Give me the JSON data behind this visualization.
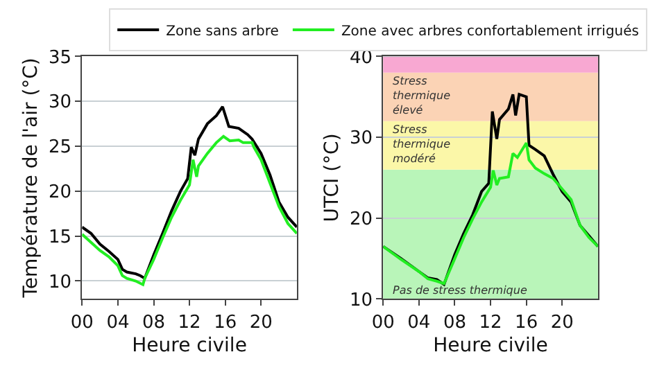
{
  "chart_data": [
    {
      "type": "line",
      "xlabel": "Heure civile",
      "ylabel": "Température de l'air (°C)",
      "legend": "top",
      "grid": "y",
      "line_style": "solid",
      "marker": "none",
      "xlim": [
        0,
        24
      ],
      "xticks": [
        {
          "value": 0,
          "label": "00"
        },
        {
          "value": 4,
          "label": "04"
        },
        {
          "value": 8,
          "label": "08"
        },
        12,
        16,
        20
      ],
      "ylim": [
        8,
        35
      ],
      "yticks": [
        10,
        15,
        20,
        25,
        30,
        35
      ],
      "series": [
        {
          "name": "Zone sans arbre",
          "color": "#000000",
          "x": [
            0,
            1,
            2,
            3,
            4,
            4.5,
            5,
            6,
            6.5,
            7,
            8,
            9,
            10,
            11,
            11.8,
            12.2,
            12.6,
            13,
            14,
            15,
            15.7,
            16.4,
            17.5,
            18.5,
            19,
            20,
            21,
            22,
            23,
            24
          ],
          "values": [
            16.0,
            15.3,
            14.1,
            13.3,
            12.4,
            11.3,
            11.0,
            10.8,
            10.6,
            10.3,
            12.9,
            15.3,
            17.8,
            20.0,
            21.4,
            24.9,
            24.0,
            25.8,
            27.5,
            28.4,
            29.4,
            27.2,
            27.0,
            26.3,
            25.8,
            24.2,
            21.8,
            18.8,
            17.1,
            16.0
          ]
        },
        {
          "name": "Zone avec arbres confortablement irrigués",
          "color": "#22ee22",
          "x": [
            0,
            1,
            2,
            3,
            4,
            4.5,
            5,
            6,
            6.8,
            7,
            8,
            9,
            10,
            11,
            12,
            12.4,
            12.8,
            13,
            14,
            15,
            15.8,
            16.5,
            17.5,
            18,
            19,
            19.2,
            20,
            21,
            22,
            23,
            24
          ],
          "values": [
            15.2,
            14.3,
            13.4,
            12.7,
            11.7,
            10.6,
            10.3,
            10.0,
            9.6,
            10.3,
            12.4,
            14.8,
            17.1,
            19.0,
            20.7,
            23.5,
            21.6,
            22.8,
            24.2,
            25.4,
            26.1,
            25.6,
            25.7,
            25.4,
            25.4,
            24.9,
            23.5,
            20.9,
            18.3,
            16.4,
            15.3
          ]
        }
      ]
    },
    {
      "type": "line",
      "xlabel": "Heure civile",
      "ylabel": "UTCI (°C)",
      "grid": "y",
      "line_style": "solid",
      "marker": "none",
      "xlim": [
        0,
        24
      ],
      "xticks": [
        {
          "value": 0,
          "label": "00"
        },
        {
          "value": 4,
          "label": "04"
        },
        {
          "value": 8,
          "label": "08"
        },
        12,
        16,
        20
      ],
      "ylim": [
        10,
        40
      ],
      "yticks": [
        10,
        20,
        30,
        40
      ],
      "bands": [
        {
          "axis": "y",
          "from": 10,
          "to": 26,
          "label": "Pas de stress thermique",
          "color": "#b9f5b9"
        },
        {
          "axis": "y",
          "from": 26,
          "to": 32,
          "label": "Stress thermique modéré",
          "color": "#fbf7a8"
        },
        {
          "axis": "y",
          "from": 32,
          "to": 38,
          "label": "Stress thermique élevé",
          "color": "#fbd3b5"
        },
        {
          "axis": "y",
          "from": 38,
          "to": 40,
          "color": "#f8a8d2"
        }
      ],
      "series": [
        {
          "color": "#000000",
          "x": [
            0,
            2,
            4,
            5,
            6,
            6.8,
            8,
            9,
            10,
            11,
            11.8,
            12.2,
            12.7,
            13,
            14,
            14.5,
            14.8,
            15.2,
            16,
            16.3,
            17,
            18,
            19,
            20,
            21,
            22,
            23,
            24
          ],
          "values": [
            16.5,
            15.0,
            13.4,
            12.6,
            12.4,
            11.8,
            15.5,
            18.1,
            20.4,
            23.3,
            24.3,
            33.2,
            29.8,
            32.2,
            33.5,
            35.3,
            32.7,
            35.3,
            35.0,
            29.0,
            28.5,
            27.7,
            25.4,
            23.3,
            22.0,
            19.1,
            17.8,
            16.5
          ]
        },
        {
          "color": "#22ee22",
          "x": [
            0,
            2,
            4,
            5,
            6,
            6.8,
            8,
            9,
            10,
            11,
            12,
            12.3,
            12.7,
            13,
            14,
            14.5,
            15,
            16,
            16.3,
            17,
            18,
            19,
            20,
            21,
            22,
            23,
            24
          ],
          "values": [
            16.5,
            14.9,
            13.4,
            12.5,
            12.2,
            11.9,
            15.0,
            17.6,
            19.9,
            22.0,
            23.8,
            25.9,
            24.1,
            24.9,
            25.1,
            28.0,
            27.5,
            29.3,
            27.2,
            26.2,
            25.5,
            24.9,
            23.6,
            22.3,
            19.1,
            17.6,
            16.5
          ]
        }
      ]
    }
  ]
}
